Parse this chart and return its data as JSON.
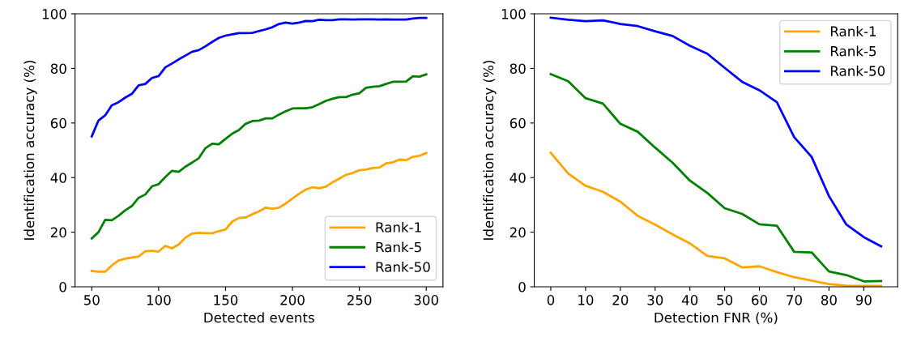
{
  "chart_data": [
    {
      "type": "line",
      "xlabel": "Detected events",
      "ylabel": "Identification accuracy (%)",
      "xlim": [
        37.5,
        312.5
      ],
      "xticks": [
        50,
        100,
        150,
        200,
        250,
        300
      ],
      "ylim": [
        0,
        100
      ],
      "yticks": [
        0,
        20,
        40,
        60,
        80,
        100
      ],
      "legend": "lower right",
      "grid": false,
      "x": [
        50,
        55,
        60,
        65,
        70,
        75,
        80,
        85,
        90,
        95,
        100,
        105,
        110,
        115,
        120,
        125,
        130,
        135,
        140,
        145,
        150,
        155,
        160,
        165,
        170,
        175,
        180,
        185,
        190,
        195,
        200,
        205,
        210,
        215,
        220,
        225,
        230,
        235,
        240,
        245,
        250,
        255,
        260,
        265,
        270,
        275,
        280,
        285,
        290,
        295,
        300
      ],
      "series": [
        {
          "name": "Rank-1",
          "color": "#ffa500",
          "values": [
            5.8,
            5.5,
            5.5,
            7.8,
            9.6,
            10.3,
            10.7,
            11.1,
            13.0,
            13.2,
            12.9,
            15.0,
            14.1,
            15.5,
            18.0,
            19.5,
            19.8,
            19.6,
            19.6,
            20.4,
            21.0,
            23.9,
            25.2,
            25.4,
            26.6,
            27.6,
            29.0,
            28.6,
            29.0,
            30.5,
            32.3,
            34.1,
            35.6,
            36.5,
            36.1,
            36.7,
            38.3,
            39.6,
            41.0,
            41.7,
            42.7,
            42.9,
            43.5,
            43.7,
            45.2,
            45.6,
            46.6,
            46.4,
            47.6,
            48.0,
            49.0
          ]
        },
        {
          "name": "Rank-5",
          "color": "#008000",
          "values": [
            17.7,
            20.0,
            24.5,
            24.4,
            26.0,
            28.0,
            29.6,
            32.6,
            33.8,
            36.8,
            37.6,
            40.2,
            42.5,
            42.1,
            44.0,
            45.5,
            47.1,
            50.8,
            52.4,
            52.2,
            54.2,
            56.1,
            57.4,
            59.7,
            60.7,
            60.9,
            61.7,
            61.7,
            63.1,
            64.3,
            65.3,
            65.4,
            65.4,
            65.8,
            66.9,
            68.1,
            68.9,
            69.5,
            69.5,
            70.4,
            70.9,
            72.9,
            73.3,
            73.5,
            74.3,
            75.1,
            75.1,
            75.2,
            77.1,
            77.0,
            77.8
          ]
        },
        {
          "name": "Rank-50",
          "color": "#0000ff",
          "values": [
            55.1,
            60.9,
            62.8,
            66.5,
            67.6,
            69.3,
            70.7,
            73.8,
            74.3,
            76.5,
            77.2,
            80.4,
            81.8,
            83.3,
            84.7,
            86.1,
            86.7,
            88.1,
            89.7,
            91.2,
            92.0,
            92.5,
            92.9,
            92.9,
            93.0,
            93.7,
            94.3,
            95.1,
            96.3,
            96.8,
            96.4,
            96.8,
            97.4,
            97.3,
            97.8,
            97.7,
            97.7,
            98.0,
            98.0,
            97.9,
            98.0,
            98.0,
            98.0,
            97.9,
            98.0,
            97.9,
            97.9,
            97.9,
            98.3,
            98.5,
            98.5
          ]
        }
      ]
    },
    {
      "type": "line",
      "xlabel": "Detection FNR (%)",
      "ylabel": "Identification accuracy (%)",
      "xlim": [
        -4.75,
        99.75
      ],
      "xticks": [
        0,
        10,
        20,
        30,
        40,
        50,
        60,
        70,
        80,
        90
      ],
      "ylim": [
        0,
        100
      ],
      "yticks": [
        0,
        20,
        40,
        60,
        80,
        100
      ],
      "legend": "upper right",
      "grid": false,
      "x": [
        0,
        5,
        10,
        15,
        20,
        25,
        30,
        35,
        40,
        45,
        50,
        55,
        60,
        65,
        70,
        75,
        80,
        85,
        90,
        95
      ],
      "series": [
        {
          "name": "Rank-1",
          "color": "#ffa500",
          "values": [
            49.1,
            41.5,
            37.0,
            34.8,
            31.2,
            26.0,
            22.8,
            19.2,
            15.9,
            11.3,
            10.4,
            7.1,
            7.5,
            5.4,
            3.5,
            2.3,
            1.0,
            0.4,
            0.3,
            0.3
          ]
        },
        {
          "name": "Rank-5",
          "color": "#008000",
          "values": [
            77.9,
            75.3,
            69.1,
            67.1,
            59.7,
            56.8,
            51.0,
            45.5,
            38.9,
            34.4,
            28.8,
            26.7,
            22.9,
            22.4,
            12.8,
            12.6,
            5.6,
            4.3,
            2.0,
            2.1
          ]
        },
        {
          "name": "Rank-50",
          "color": "#0000ff",
          "values": [
            98.6,
            97.8,
            97.3,
            97.6,
            96.3,
            95.5,
            93.6,
            91.9,
            88.3,
            85.4,
            80.2,
            75.1,
            72.0,
            67.6,
            54.8,
            47.6,
            33.2,
            22.8,
            18.2,
            14.8
          ]
        }
      ]
    }
  ]
}
